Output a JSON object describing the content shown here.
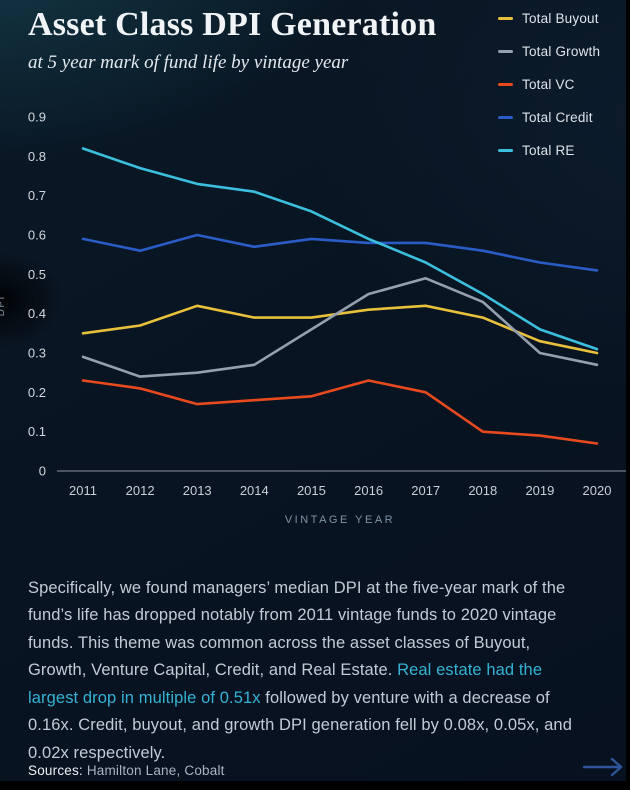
{
  "header": {
    "title": "Asset Class DPI Generation",
    "subtitle": "at 5 year mark of fund life by vintage year"
  },
  "legend": [
    {
      "label": "Total Buyout",
      "color": "#e8c13c"
    },
    {
      "label": "Total Growth",
      "color": "#95a0ae"
    },
    {
      "label": "Total VC",
      "color": "#e84a1e"
    },
    {
      "label": "Total Credit",
      "color": "#2a5cc8"
    },
    {
      "label": "Total RE",
      "color": "#3bbfdc"
    }
  ],
  "chart_data": {
    "type": "line",
    "x": [
      2011,
      2012,
      2013,
      2014,
      2015,
      2016,
      2017,
      2018,
      2019,
      2020
    ],
    "series": [
      {
        "name": "Total Buyout",
        "color": "#e8c13c",
        "values": [
          0.35,
          0.37,
          0.42,
          0.39,
          0.39,
          0.41,
          0.42,
          0.39,
          0.33,
          0.3
        ]
      },
      {
        "name": "Total Growth",
        "color": "#95a0ae",
        "values": [
          0.29,
          0.24,
          0.25,
          0.27,
          0.36,
          0.45,
          0.49,
          0.43,
          0.3,
          0.27
        ]
      },
      {
        "name": "Total VC",
        "color": "#e84a1e",
        "values": [
          0.23,
          0.21,
          0.17,
          0.18,
          0.19,
          0.23,
          0.2,
          0.1,
          0.09,
          0.07
        ]
      },
      {
        "name": "Total Credit",
        "color": "#2a5cc8",
        "values": [
          0.59,
          0.56,
          0.6,
          0.57,
          0.59,
          0.58,
          0.58,
          0.56,
          0.53,
          0.51
        ]
      },
      {
        "name": "Total RE",
        "color": "#3bbfdc",
        "values": [
          0.82,
          0.77,
          0.73,
          0.71,
          0.66,
          0.59,
          0.53,
          0.45,
          0.36,
          0.31
        ]
      }
    ],
    "xlabel": "VINTAGE YEAR",
    "ylabel": "DPI",
    "ylim": [
      0,
      0.9
    ],
    "yticks": [
      0,
      0.1,
      0.2,
      0.3,
      0.4,
      0.5,
      0.6,
      0.7,
      0.8,
      0.9
    ],
    "grid": false,
    "legend_position": "top-right"
  },
  "body": {
    "para_before": "Specifically, we found managers’ median DPI at the five-year mark of the fund’s life has dropped notably from 2011 vintage funds to 2020 vintage funds. This theme was common across the asset classes of Buyout, Growth, Venture Capital, Credit, and Real Estate. ",
    "para_highlight": "Real estate had the largest drop in multiple of 0.51x",
    "para_after": " followed by venture with a decrease of 0.16x. Credit, buyout, and growth DPI generation fell by 0.08x, 0.05x, and 0.02x respectively.",
    "highlight_color": "#35b2d4"
  },
  "footer": {
    "sources_label": "Sources:",
    "sources_value": " Hamilton Lane, Cobalt"
  }
}
